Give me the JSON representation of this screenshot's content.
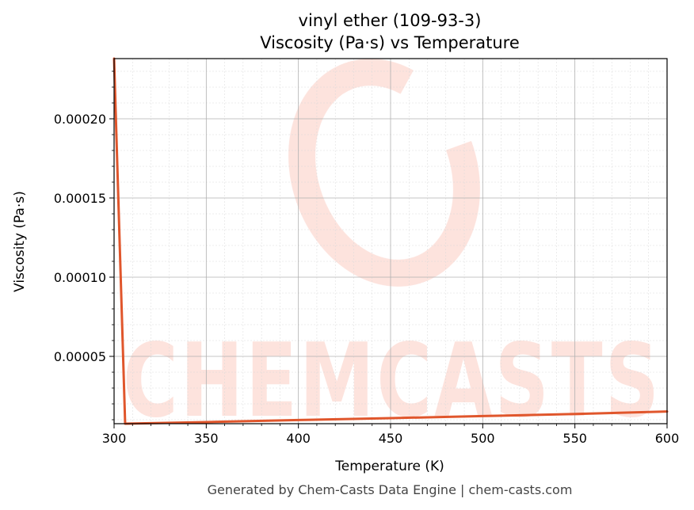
{
  "chart_data": {
    "type": "line",
    "title": "vinyl ether (109-93-3)",
    "subtitle": "Viscosity (Pa·s) vs Temperature",
    "xlabel": "Temperature (K)",
    "ylabel": "Viscosity (Pa·s)",
    "xlim": [
      300,
      600
    ],
    "ylim": [
      7.5e-06,
      0.000238
    ],
    "xticks": [
      300,
      350,
      400,
      450,
      500,
      550,
      600
    ],
    "yticks": [
      5e-05,
      0.0001,
      0.00015,
      0.0002
    ],
    "ytick_labels": [
      "0.00005",
      "0.00010",
      "0.00015",
      "0.00020"
    ],
    "grid": true,
    "series": [
      {
        "color": "#e0562c",
        "x": [
          300,
          306,
          350,
          400,
          450,
          500,
          550,
          600
        ],
        "y": [
          0.000238,
          7.5e-06,
          8.5e-06,
          9.8e-06,
          1.1e-05,
          1.23e-05,
          1.36e-05,
          1.52e-05
        ]
      }
    ]
  },
  "watermark": {
    "text": "CHEMCASTS",
    "color": "#fde0da"
  },
  "footer": "Generated by Chem-Casts Data Engine | chem-casts.com"
}
